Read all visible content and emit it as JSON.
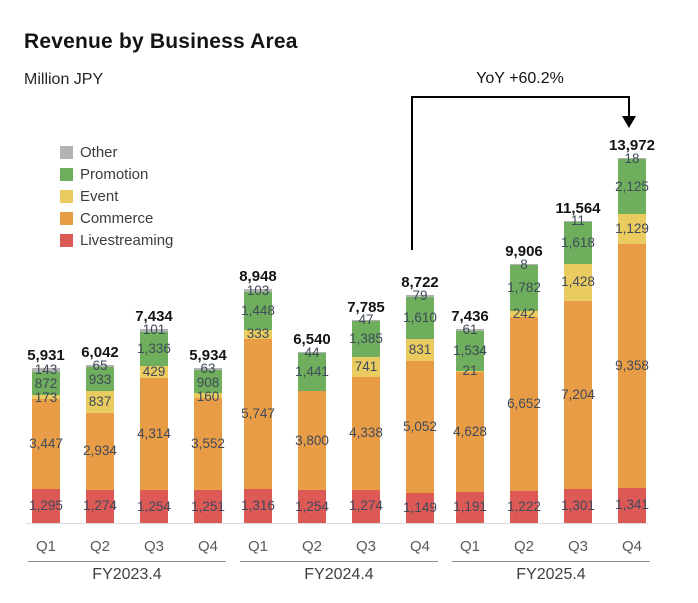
{
  "header": {
    "title": "Revenue by Business Area",
    "subtitle": "Million JPY"
  },
  "annotation": {
    "text": "YoY +60.2%",
    "from": "FY2024.4 Q4",
    "to": "FY2025.4 Q4"
  },
  "chart_data": {
    "type": "bar",
    "stacked": true,
    "title": "Revenue by Business Area",
    "xlabel": "",
    "ylabel": "Million JPY",
    "grid": false,
    "legend_position": "top-left",
    "segment_order_bottom_to_top": [
      "Livestreaming",
      "Commerce",
      "Event",
      "Promotion",
      "Other"
    ],
    "legend": [
      {
        "name": "Other",
        "color": "#b3b3b3"
      },
      {
        "name": "Promotion",
        "color": "#6eae5c"
      },
      {
        "name": "Event",
        "color": "#e9cb5f"
      },
      {
        "name": "Commerce",
        "color": "#e99c46"
      },
      {
        "name": "Livestreaming",
        "color": "#dc5956"
      }
    ],
    "groups": [
      {
        "label": "FY2023.4",
        "bars": [
          {
            "quarter": "Q1",
            "total": 5931,
            "segments": {
              "Other": 143,
              "Promotion": 872,
              "Event": 173,
              "Commerce": 3447,
              "Livestreaming": 1295
            }
          },
          {
            "quarter": "Q2",
            "total": 6042,
            "segments": {
              "Other": 65,
              "Promotion": 933,
              "Event": 837,
              "Commerce": 2934,
              "Livestreaming": 1274
            }
          },
          {
            "quarter": "Q3",
            "total": 7434,
            "segments": {
              "Other": 101,
              "Promotion": 1336,
              "Event": 429,
              "Commerce": 4314,
              "Livestreaming": 1254
            }
          },
          {
            "quarter": "Q4",
            "total": 5934,
            "segments": {
              "Other": 63,
              "Promotion": 908,
              "Event": 160,
              "Commerce": 3552,
              "Livestreaming": 1251
            }
          }
        ]
      },
      {
        "label": "FY2024.4",
        "bars": [
          {
            "quarter": "Q1",
            "total": 8948,
            "segments": {
              "Other": 103,
              "Promotion": 1448,
              "Event": 333,
              "Commerce": 5747,
              "Livestreaming": 1316
            }
          },
          {
            "quarter": "Q2",
            "total": 6540,
            "segments": {
              "Other": 44,
              "Promotion": 1441,
              "Event": null,
              "Commerce": 3800,
              "Livestreaming": 1254
            }
          },
          {
            "quarter": "Q3",
            "total": 7785,
            "segments": {
              "Other": 47,
              "Promotion": 1385,
              "Event": 741,
              "Commerce": 4338,
              "Livestreaming": 1274
            }
          },
          {
            "quarter": "Q4",
            "total": 8722,
            "segments": {
              "Other": 79,
              "Promotion": 1610,
              "Event": 831,
              "Commerce": 5052,
              "Livestreaming": 1149
            }
          }
        ]
      },
      {
        "label": "FY2025.4",
        "bars": [
          {
            "quarter": "Q1",
            "total": 7436,
            "segments": {
              "Other": 61,
              "Promotion": 1534,
              "Event": 21,
              "Commerce": 4628,
              "Livestreaming": 1191
            }
          },
          {
            "quarter": "Q2",
            "total": 9906,
            "segments": {
              "Other": 8,
              "Promotion": 1782,
              "Event": 242,
              "Commerce": 6652,
              "Livestreaming": 1222
            }
          },
          {
            "quarter": "Q3",
            "total": 11564,
            "segments": {
              "Other": 11,
              "Promotion": 1618,
              "Event": 1428,
              "Commerce": 7204,
              "Livestreaming": 1301
            }
          },
          {
            "quarter": "Q4",
            "total": 13972,
            "segments": {
              "Other": 18,
              "Promotion": 2125,
              "Event": 1129,
              "Commerce": 9358,
              "Livestreaming": 1341
            }
          }
        ]
      }
    ]
  }
}
